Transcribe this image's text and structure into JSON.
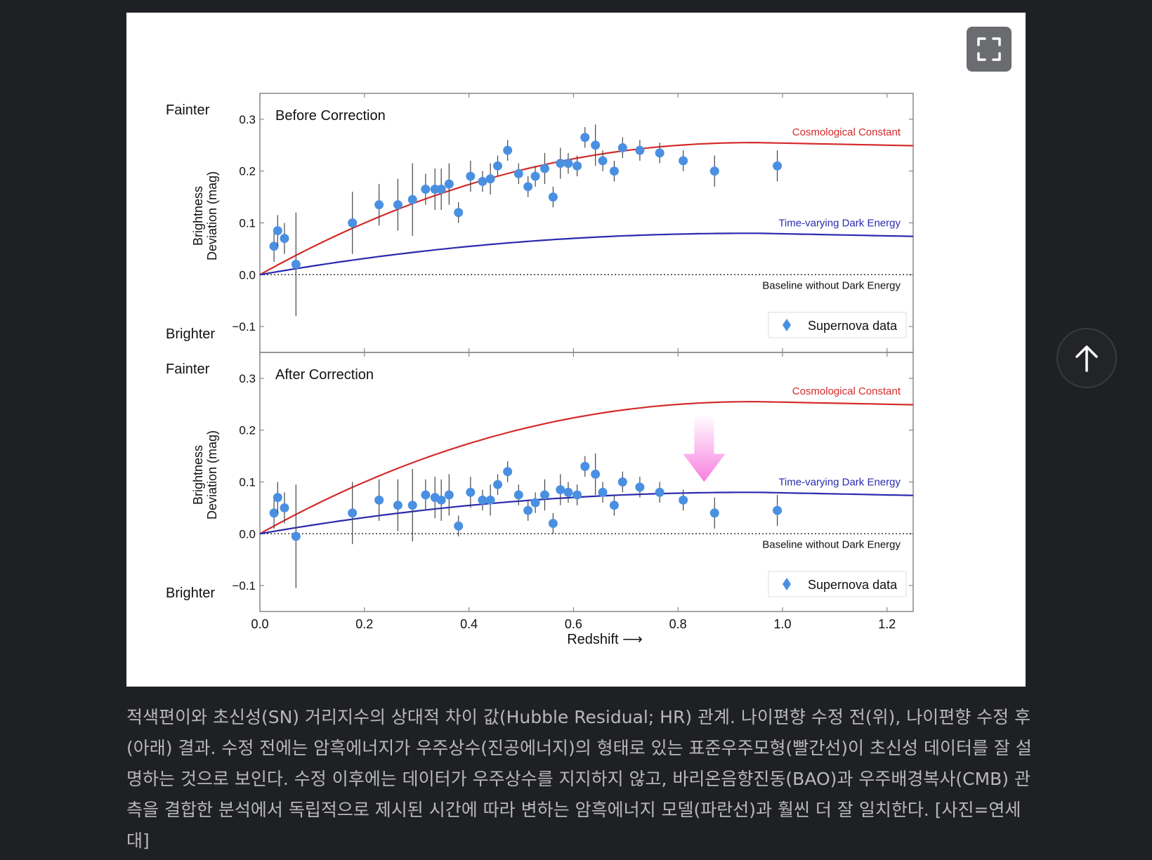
{
  "ui": {
    "expand_icon": "expand-fullscreen-icon",
    "scroll_top_icon": "arrow-up-icon",
    "caption": "적색편이와 초신성(SN) 거리지수의 상대적 차이 값(Hubble Residual; HR) 관계. 나이편향 수정 전(위), 나이편향 수정 후(아래) 결과. 수정 전에는 암흑에너지가 우주상수(진공에너지)의 형태로 있는 표준우주모형(빨간선)이 초신성 데이터를 잘 설명하는 것으로 보인다. 수정 이후에는 데이터가 우주상수를 지지하지 않고, 바리온음향진동(BAO)과 우주배경복사(CMB) 관측을 결합한 분석에서 독립적으로 제시된 시간에 따라 변하는 암흑에너지 모델(파란선)과 훨씬 더 잘 일치한다. [사진=연세대]"
  },
  "colors": {
    "cosmological": "#d42a2a",
    "dark_energy": "#2a2ab0",
    "points": "#4a90e2",
    "arrow": "#f77fe0"
  },
  "chart_data": [
    {
      "type": "scatter",
      "title": "Before Correction",
      "xlabel": "Redshift ⟶",
      "ylabel": "Brightness Deviation (mag)",
      "fainter_label": "Fainter",
      "brighter_label": "Brighter",
      "xlim": [
        0.0,
        1.25
      ],
      "ylim": [
        -0.15,
        0.35
      ],
      "xticks": [
        "0.0",
        "0.2",
        "0.4",
        "0.6",
        "0.8",
        "1.0",
        "1.2"
      ],
      "yticks": [
        "0.3",
        "0.2",
        "0.1",
        "0.0",
        "−0.1"
      ],
      "curve_labels": {
        "cosmological": "Cosmological Constant",
        "dark_energy": "Time-varying Dark Energy",
        "baseline": "Baseline without Dark Energy"
      },
      "legend": "Supernova data",
      "curves": {
        "cosmological_peak": 0.255,
        "dark_energy_peak": 0.08
      },
      "points": [
        [
          0.027,
          0.055,
          0.03
        ],
        [
          0.034,
          0.085,
          0.03
        ],
        [
          0.047,
          0.07,
          0.03
        ],
        [
          0.069,
          0.02,
          0.1
        ],
        [
          0.177,
          0.1,
          0.06
        ],
        [
          0.228,
          0.135,
          0.04
        ],
        [
          0.264,
          0.135,
          0.05
        ],
        [
          0.292,
          0.145,
          0.07
        ],
        [
          0.317,
          0.165,
          0.03
        ],
        [
          0.335,
          0.165,
          0.04
        ],
        [
          0.347,
          0.165,
          0.04
        ],
        [
          0.362,
          0.175,
          0.04
        ],
        [
          0.38,
          0.12,
          0.02
        ],
        [
          0.403,
          0.19,
          0.03
        ],
        [
          0.426,
          0.18,
          0.02
        ],
        [
          0.441,
          0.185,
          0.03
        ],
        [
          0.455,
          0.21,
          0.02
        ],
        [
          0.474,
          0.24,
          0.02
        ],
        [
          0.495,
          0.195,
          0.02
        ],
        [
          0.513,
          0.17,
          0.02
        ],
        [
          0.527,
          0.19,
          0.02
        ],
        [
          0.545,
          0.205,
          0.03
        ],
        [
          0.561,
          0.15,
          0.02
        ],
        [
          0.575,
          0.215,
          0.03
        ],
        [
          0.59,
          0.215,
          0.02
        ],
        [
          0.607,
          0.21,
          0.02
        ],
        [
          0.622,
          0.265,
          0.02
        ],
        [
          0.642,
          0.25,
          0.04
        ],
        [
          0.656,
          0.22,
          0.02
        ],
        [
          0.678,
          0.2,
          0.02
        ],
        [
          0.694,
          0.245,
          0.02
        ],
        [
          0.727,
          0.24,
          0.02
        ],
        [
          0.765,
          0.235,
          0.02
        ],
        [
          0.81,
          0.22,
          0.02
        ],
        [
          0.87,
          0.2,
          0.03
        ],
        [
          0.99,
          0.21,
          0.03
        ]
      ]
    },
    {
      "type": "scatter",
      "title": "After Correction",
      "xlabel": "Redshift ⟶",
      "ylabel": "Brightness Deviation (mag)",
      "fainter_label": "Fainter",
      "brighter_label": "Brighter",
      "xlim": [
        0.0,
        1.25
      ],
      "ylim": [
        -0.15,
        0.35
      ],
      "xticks": [
        "0.0",
        "0.2",
        "0.4",
        "0.6",
        "0.8",
        "1.0",
        "1.2"
      ],
      "yticks": [
        "0.3",
        "0.2",
        "0.1",
        "0.0",
        "−0.1"
      ],
      "curve_labels": {
        "cosmological": "Cosmological Constant",
        "dark_energy": "Time-varying Dark Energy",
        "baseline": "Baseline without Dark Energy"
      },
      "legend": "Supernova data",
      "curves": {
        "cosmological_peak": 0.255,
        "dark_energy_peak": 0.08
      },
      "arrow_annotation": {
        "x": 0.85,
        "from_y": 0.23,
        "to_y": 0.1
      },
      "points": [
        [
          0.027,
          0.04,
          0.03
        ],
        [
          0.034,
          0.07,
          0.03
        ],
        [
          0.047,
          0.05,
          0.03
        ],
        [
          0.069,
          -0.005,
          0.1
        ],
        [
          0.177,
          0.04,
          0.06
        ],
        [
          0.228,
          0.065,
          0.04
        ],
        [
          0.264,
          0.055,
          0.05
        ],
        [
          0.292,
          0.055,
          0.07
        ],
        [
          0.317,
          0.075,
          0.03
        ],
        [
          0.335,
          0.07,
          0.04
        ],
        [
          0.347,
          0.065,
          0.04
        ],
        [
          0.362,
          0.075,
          0.04
        ],
        [
          0.38,
          0.015,
          0.02
        ],
        [
          0.403,
          0.08,
          0.03
        ],
        [
          0.426,
          0.065,
          0.02
        ],
        [
          0.441,
          0.065,
          0.03
        ],
        [
          0.455,
          0.095,
          0.02
        ],
        [
          0.474,
          0.12,
          0.02
        ],
        [
          0.495,
          0.075,
          0.02
        ],
        [
          0.513,
          0.045,
          0.02
        ],
        [
          0.527,
          0.06,
          0.02
        ],
        [
          0.545,
          0.075,
          0.03
        ],
        [
          0.561,
          0.02,
          0.02
        ],
        [
          0.575,
          0.085,
          0.03
        ],
        [
          0.59,
          0.08,
          0.02
        ],
        [
          0.607,
          0.075,
          0.02
        ],
        [
          0.622,
          0.13,
          0.02
        ],
        [
          0.642,
          0.115,
          0.04
        ],
        [
          0.656,
          0.08,
          0.02
        ],
        [
          0.678,
          0.055,
          0.02
        ],
        [
          0.694,
          0.1,
          0.02
        ],
        [
          0.727,
          0.09,
          0.02
        ],
        [
          0.765,
          0.08,
          0.02
        ],
        [
          0.81,
          0.065,
          0.02
        ],
        [
          0.87,
          0.04,
          0.03
        ],
        [
          0.99,
          0.045,
          0.03
        ]
      ]
    }
  ]
}
